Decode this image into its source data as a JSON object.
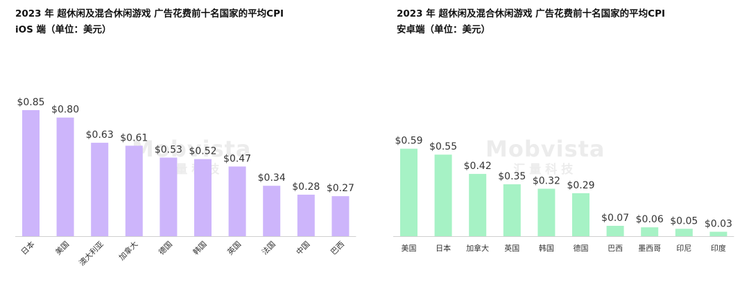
{
  "watermark": {
    "brand": "Mobvista",
    "sub": "汇量科技"
  },
  "chart_data": [
    {
      "type": "bar",
      "title": "2023 年 超休闲及混合休闲游戏 广告花费前十名国家的平均CPI",
      "subtitle": "iOS 端（单位：美元）",
      "categories": [
        "日本",
        "美国",
        "澳大利亚",
        "加拿大",
        "德国",
        "韩国",
        "英国",
        "法国",
        "中国",
        "巴西"
      ],
      "values": [
        0.85,
        0.8,
        0.63,
        0.61,
        0.53,
        0.52,
        0.47,
        0.34,
        0.28,
        0.27
      ],
      "data_labels": [
        "$0.85",
        "$0.80",
        "$0.63",
        "$0.61",
        "$0.53",
        "$0.52",
        "$0.47",
        "$0.34",
        "$0.28",
        "$0.27"
      ],
      "color": "#cdb5fb",
      "ylim": [
        0,
        0.85
      ],
      "grid": false,
      "legend": "none"
    },
    {
      "type": "bar",
      "title": "2023 年 超休闲及混合休闲游戏 广告花费前十名国家的平均CPI",
      "subtitle": "安卓端（单位：美元）",
      "categories": [
        "美国",
        "日本",
        "加拿大",
        "英国",
        "韩国",
        "德国",
        "巴西",
        "墨西哥",
        "印尼",
        "印度"
      ],
      "values": [
        0.59,
        0.55,
        0.42,
        0.35,
        0.32,
        0.29,
        0.07,
        0.06,
        0.05,
        0.03
      ],
      "data_labels": [
        "$0.59",
        "$0.55",
        "$0.42",
        "$0.35",
        "$0.32",
        "$0.29",
        "$0.07",
        "$0.06",
        "$0.05",
        "$0.03"
      ],
      "color": "#a6f2c5",
      "ylim": [
        0,
        0.85
      ],
      "grid": false,
      "legend": "none"
    }
  ]
}
